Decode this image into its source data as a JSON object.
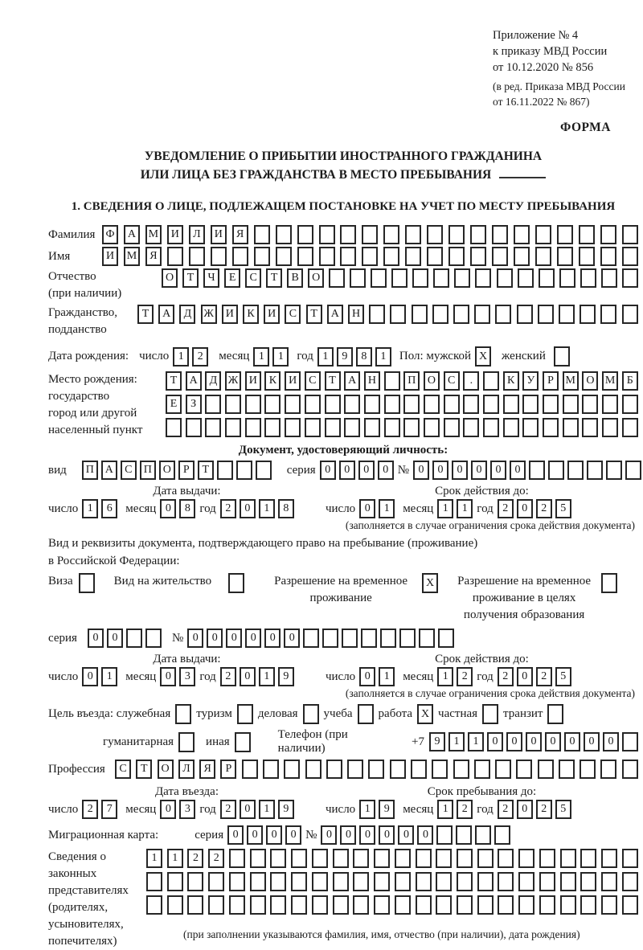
{
  "annex": {
    "line1": "Приложение № 4",
    "line2": "к приказу МВД России",
    "line3": "от 10.12.2020 № 856",
    "edit1": "(в ред. Приказа МВД России",
    "edit2": "от 16.11.2022 № 867)",
    "form_label": "ФОРМА"
  },
  "title": {
    "line1": "УВЕДОМЛЕНИЕ О ПРИБЫТИИ ИНОСТРАННОГО ГРАЖДАНИНА",
    "line2": "ИЛИ ЛИЦА БЕЗ ГРАЖДАНСТВА В МЕСТО ПРЕБЫВАНИЯ"
  },
  "section1_heading": "1. СВЕДЕНИЯ О ЛИЦЕ, ПОДЛЕЖАЩЕМ ПОСТАНОВКЕ НА УЧЕТ ПО МЕСТУ ПРЕБЫВАНИЯ",
  "labels": {
    "surname": "Фамилия",
    "name": "Имя",
    "patronymic1": "Отчество",
    "patronymic2": "(при наличии)",
    "citizenship1": "Гражданство,",
    "citizenship2": "подданство",
    "birthdate": "Дата рождения:",
    "day": "число",
    "month": "месяц",
    "year": "год",
    "gender_male": "Пол: мужской",
    "gender_female": "женский",
    "birthplace1": "Место рождения:",
    "birthplace2": "государство",
    "birthplace3": "город или другой",
    "birthplace4": "населенный пункт",
    "doc_heading": "Документ, удостоверяющий личность:",
    "vid": "вид",
    "seriya": "серия",
    "nomer": "№",
    "issue_date": "Дата выдачи:",
    "valid_until": "Срок действия до:",
    "limited_note": "(заполняется в случае ограничения срока действия документа)",
    "right_doc1": "Вид и реквизиты документа, подтверждающего право на пребывание (проживание)",
    "right_doc2": "в Российской Федерации:",
    "visa": "Виза",
    "residence_permit": "Вид на жительство",
    "temp_residence": "Разрешение на временное проживание",
    "temp_residence_edu": "Разрешение на временное проживание в целях получения образования",
    "purpose_prefix": "Цель въезда: служебная",
    "tourism": "туризм",
    "business": "деловая",
    "study": "учеба",
    "work": "работа",
    "private": "частная",
    "transit": "транзит",
    "humanitarian": "гуманитарная",
    "other": "иная",
    "phone": "Телефон (при наличии)",
    "phone_prefix": "+7",
    "profession": "Профессия",
    "entry_date": "Дата въезда:",
    "stay_until": "Срок пребывания до:",
    "migration_card": "Миграционная карта:",
    "guardians1": "Сведения о",
    "guardians2": "законных",
    "guardians3": "представителях",
    "guardians4": "(родителях,",
    "guardians5": "усыновителях,",
    "guardians6": "попечителях)",
    "guardians_note": "(при заполнении указываются фамилия, имя, отчество (при наличии), дата рождения)"
  },
  "fields": {
    "surname": {
      "value": "ФАМИЛИЯ",
      "total": 25
    },
    "name": {
      "value": "ИМЯ",
      "total": 25
    },
    "patronymic": {
      "value": "ОТЧЕСТВО",
      "total": 23
    },
    "citizenship": {
      "value": "ТАДЖИКИСТАН",
      "total": 24
    },
    "birthplace_row1": {
      "value": "ТАДЖИКИСТАН ПОС. КУРМОМБ",
      "total": 24
    },
    "birthplace_row2": {
      "value": "ЕЗ",
      "total": 24
    },
    "birthplace_row3": {
      "value": "",
      "total": 24
    },
    "doc_type": {
      "value": "ПАСПОРТ",
      "total": 10
    },
    "doc_seriya": {
      "value": "0000",
      "total": 4
    },
    "doc_nomer": {
      "value": "000000",
      "total": 12
    },
    "permit_seriya": {
      "value": "00",
      "total": 4
    },
    "permit_nomer": {
      "value": "000000",
      "total": 14
    },
    "phone_number": {
      "value": "9110000000",
      "total": 11
    },
    "profession": {
      "value": "СТОЛЯР",
      "total": 25
    },
    "mk_seriya": {
      "value": "0000",
      "total": 4
    },
    "mk_nomer": {
      "value": "000000",
      "total": 10
    },
    "guardians_row1": {
      "value": "1122",
      "total": 24
    },
    "guardians_row2": {
      "value": "",
      "total": 24
    },
    "guardians_row3": {
      "value": "",
      "total": 24
    }
  },
  "birth": {
    "day": "12",
    "month": "11",
    "year": "1981",
    "male_checked": "X",
    "female_checked": ""
  },
  "doc_issue": {
    "day": "16",
    "month": "08",
    "year": "2018"
  },
  "doc_valid": {
    "day": "01",
    "month": "11",
    "year": "2025"
  },
  "permit_issue": {
    "day": "01",
    "month": "03",
    "year": "2019"
  },
  "permit_valid": {
    "day": "01",
    "month": "12",
    "year": "2025"
  },
  "entry": {
    "day": "27",
    "month": "03",
    "year": "2019"
  },
  "stay": {
    "day": "19",
    "month": "12",
    "year": "2025"
  },
  "checks": {
    "visa": "",
    "residence_permit": "",
    "temp_residence": "X",
    "temp_residence_edu": "",
    "official": "",
    "tourism": "",
    "business": "",
    "study": "",
    "work": "X",
    "private": "",
    "transit": "",
    "humanitarian": "",
    "other": ""
  }
}
